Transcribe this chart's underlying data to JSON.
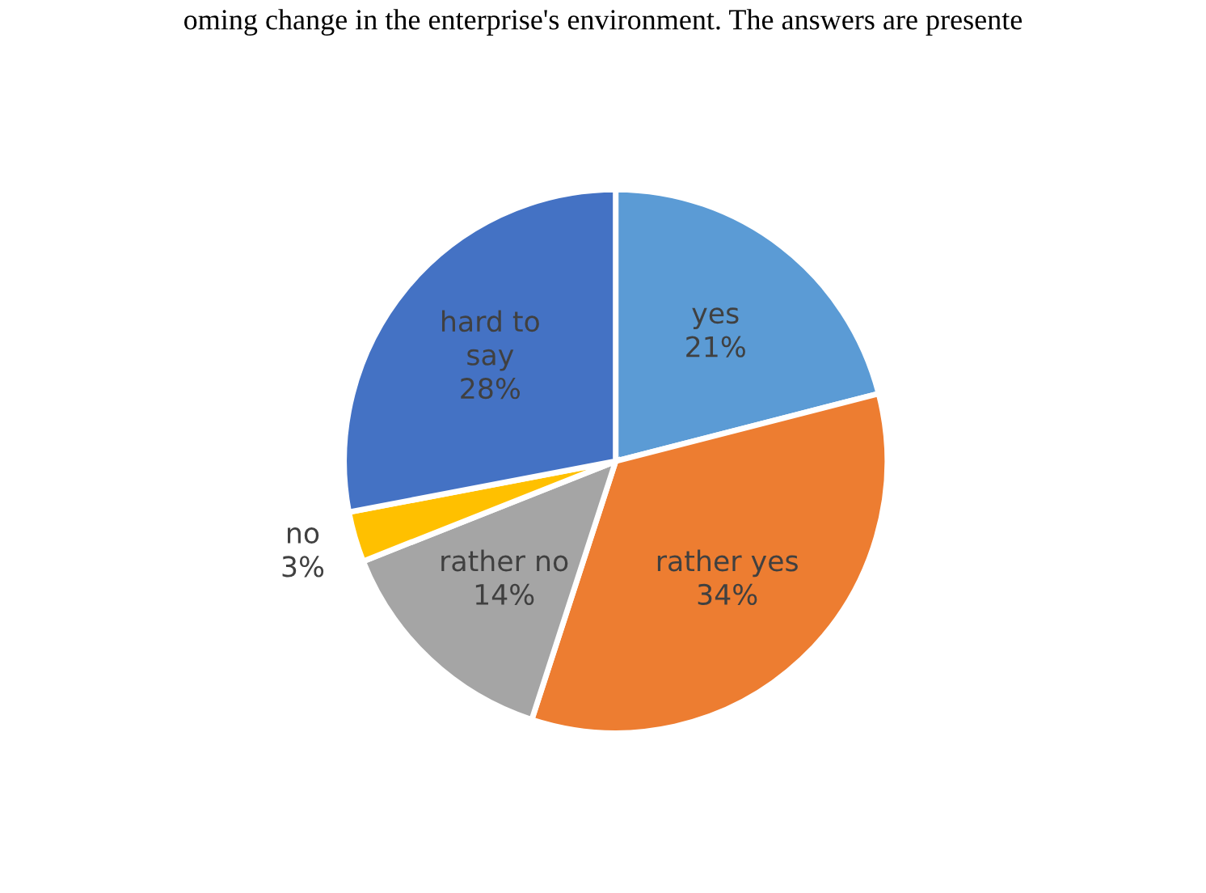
{
  "chart_data": {
    "type": "pie",
    "annotations": [
      "oming change in the enterprise's environment. The answers are presente"
    ],
    "categories": [
      "yes",
      "rather yes",
      "rather no",
      "no",
      "hard to say"
    ],
    "values": [
      21,
      34,
      14,
      3,
      28
    ],
    "colors": [
      "#5b9bd5",
      "#ed7d31",
      "#a5a5a5",
      "#ffc000",
      "#4472c4"
    ],
    "value_labels": [
      "21%",
      "34%",
      "14%",
      "3%",
      "28%"
    ],
    "legend": false
  }
}
